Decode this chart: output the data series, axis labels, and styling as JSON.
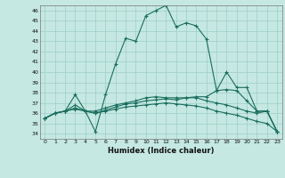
{
  "xlabel": "Humidex (Indice chaleur)",
  "xlim": [
    -0.5,
    23.5
  ],
  "ylim": [
    33.5,
    46.5
  ],
  "yticks": [
    34,
    35,
    36,
    37,
    38,
    39,
    40,
    41,
    42,
    43,
    44,
    45,
    46
  ],
  "xticks": [
    0,
    1,
    2,
    3,
    4,
    5,
    6,
    7,
    8,
    9,
    10,
    11,
    12,
    13,
    14,
    15,
    16,
    17,
    18,
    19,
    20,
    21,
    22,
    23
  ],
  "bg_color": "#c5e8e2",
  "line_color": "#1a6e5e",
  "grid_color": "#9ecec6",
  "lines": [
    [
      35.5,
      36.0,
      36.2,
      37.8,
      36.2,
      34.2,
      37.8,
      40.8,
      43.3,
      43.0,
      45.5,
      46.0,
      46.5,
      44.4,
      44.8,
      44.5,
      43.2,
      38.2,
      40.0,
      38.5,
      38.5,
      36.2,
      36.2,
      34.2
    ],
    [
      35.5,
      36.0,
      36.2,
      36.8,
      36.2,
      36.2,
      36.5,
      36.8,
      37.0,
      37.2,
      37.5,
      37.6,
      37.5,
      37.5,
      37.5,
      37.6,
      37.6,
      38.2,
      38.3,
      38.2,
      37.2,
      36.2,
      36.2,
      34.2
    ],
    [
      35.5,
      36.0,
      36.2,
      36.5,
      36.2,
      36.0,
      36.3,
      36.6,
      36.9,
      37.0,
      37.2,
      37.3,
      37.4,
      37.3,
      37.5,
      37.5,
      37.2,
      37.0,
      36.8,
      36.5,
      36.2,
      36.0,
      36.2,
      34.2
    ],
    [
      35.5,
      36.0,
      36.2,
      36.4,
      36.2,
      36.0,
      36.2,
      36.4,
      36.6,
      36.7,
      36.8,
      36.9,
      37.0,
      36.9,
      36.8,
      36.7,
      36.5,
      36.2,
      36.0,
      35.8,
      35.5,
      35.2,
      35.0,
      34.2
    ]
  ]
}
